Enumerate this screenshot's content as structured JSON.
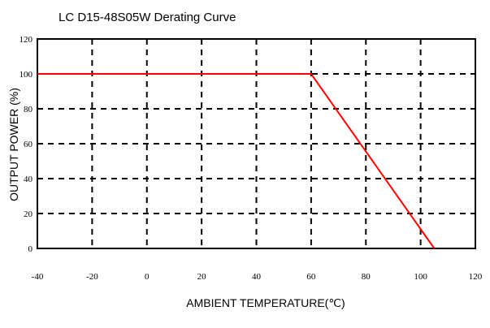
{
  "chart_data": {
    "type": "line",
    "title": "LC D15-48S05W Derating Curve",
    "xlabel": "AMBIENT TEMPERATURE(℃)",
    "ylabel": "OUTPUT POWER (%)",
    "xlim": [
      -40,
      120
    ],
    "ylim": [
      0,
      120
    ],
    "x_ticks": [
      -40,
      -20,
      0,
      20,
      40,
      60,
      80,
      100,
      120
    ],
    "y_ticks": [
      0,
      20,
      40,
      60,
      80,
      100,
      120
    ],
    "grid": true,
    "series": [
      {
        "x": [
          -40,
          60,
          105
        ],
        "y": [
          100,
          100,
          0
        ],
        "color": "#ff0000"
      }
    ]
  }
}
